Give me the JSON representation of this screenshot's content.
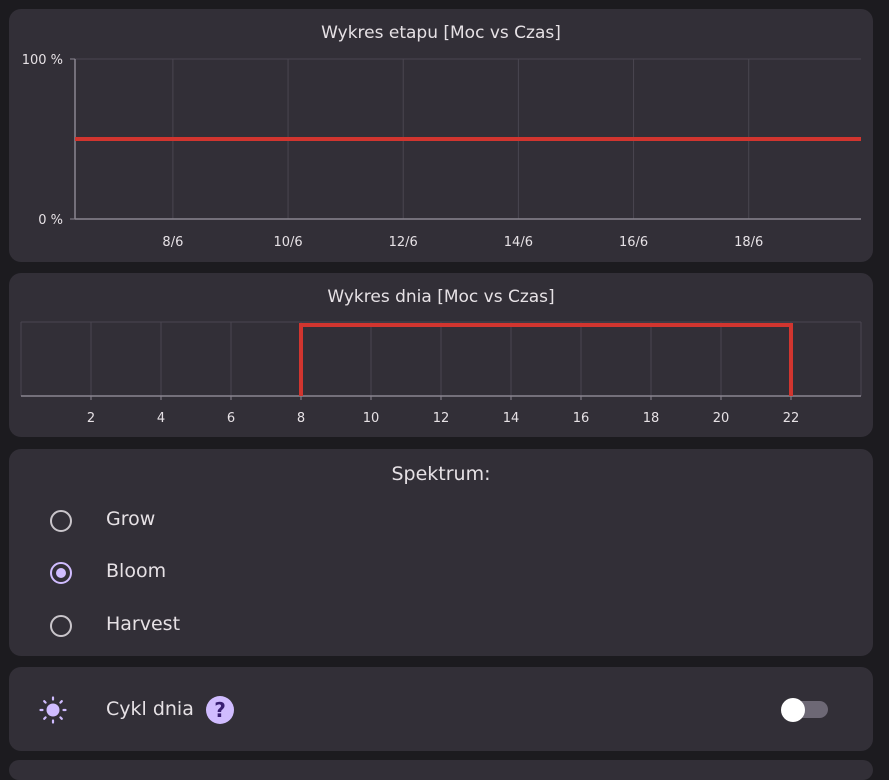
{
  "stage_chart": {
    "title": "Wykres etapu [Moc vs Czas]"
  },
  "day_chart": {
    "title": "Wykres dnia [Moc vs Czas]"
  },
  "chart_data": [
    {
      "type": "line",
      "title": "Wykres etapu [Moc vs Czas]",
      "ytick_labels": [
        "100 %",
        "0 %"
      ],
      "ylim": [
        0,
        100
      ],
      "xtick_labels": [
        "8/6",
        "10/6",
        "12/6",
        "14/6",
        "16/6",
        "18/6"
      ],
      "x_range_days": [
        6.3,
        19.95
      ],
      "series": [
        {
          "x": [
            6.3,
            19.95
          ],
          "y": [
            50,
            50
          ],
          "color": "#d1352f"
        }
      ],
      "grid": true
    },
    {
      "type": "line",
      "title": "Wykres dnia [Moc vs Czas]",
      "xtick_labels": [
        "2",
        "4",
        "6",
        "8",
        "10",
        "12",
        "14",
        "16",
        "18",
        "20",
        "22"
      ],
      "xlim": [
        0,
        24
      ],
      "ylim": [
        0,
        1
      ],
      "series": [
        {
          "x": [
            8,
            8,
            22,
            22
          ],
          "y": [
            0,
            1,
            1,
            0
          ],
          "color": "#d1352f"
        }
      ],
      "grid": true
    }
  ],
  "spectrum": {
    "title": "Spektrum:",
    "options": [
      {
        "label": "Grow",
        "checked": false
      },
      {
        "label": "Bloom",
        "checked": true
      },
      {
        "label": "Harvest",
        "checked": false
      }
    ]
  },
  "day_cycle": {
    "label": "Cykl dnia",
    "help": "?",
    "enabled": false,
    "icon": "sun-icon"
  },
  "colors": {
    "accent": "#d0bcff",
    "line": "#d1352f",
    "card": "#322f37",
    "background": "#1c1b1f"
  }
}
